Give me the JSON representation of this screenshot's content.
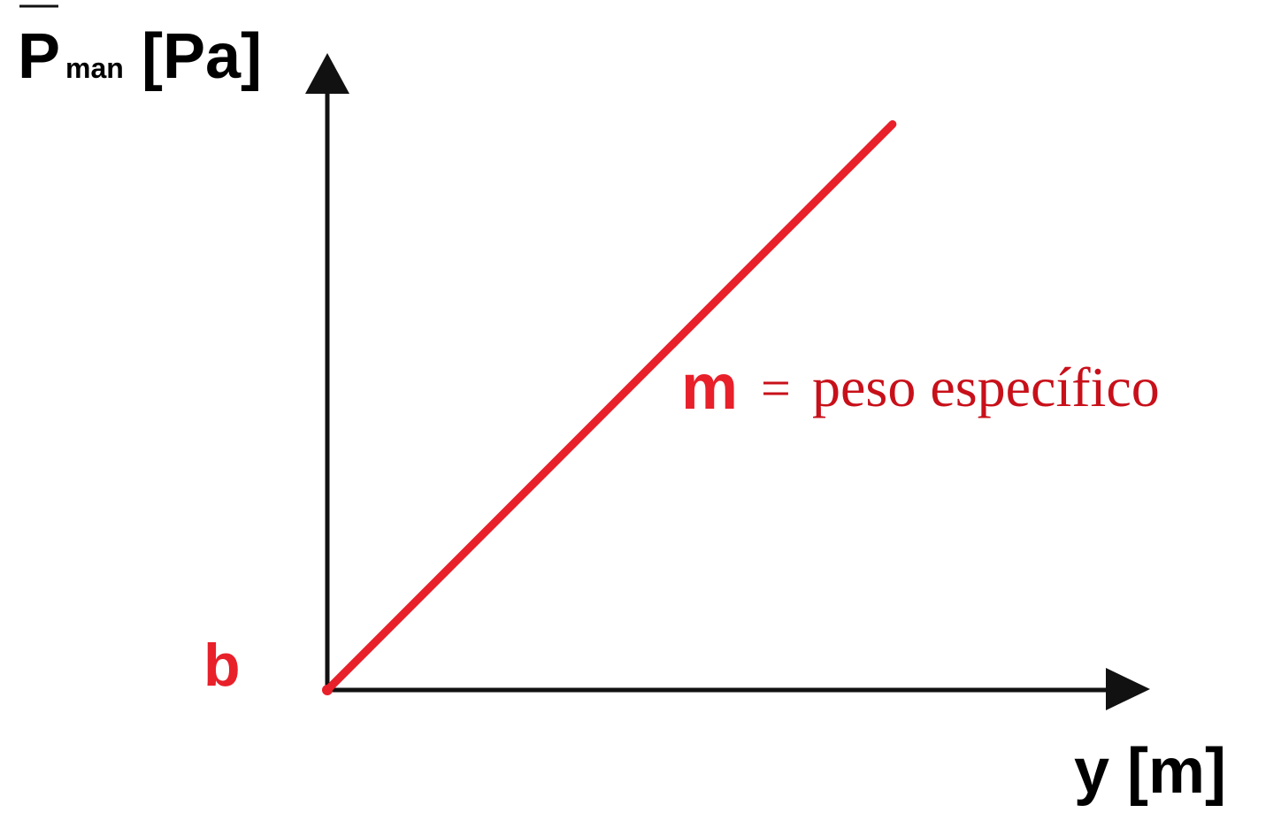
{
  "chart_data": {
    "type": "line",
    "ylabel": {
      "main": "P",
      "subscript": "man",
      "unit": "[Pa]",
      "overline": true
    },
    "xlabel": "y [m]",
    "intercept_label": "b",
    "slope_label": {
      "symbol": "m",
      "equals": "=",
      "text": "peso específico"
    },
    "series": [
      {
        "x": [
          0,
          1
        ],
        "y": [
          0,
          1
        ]
      }
    ],
    "xlim": [
      0,
      1.44
    ],
    "ylim": [
      0,
      1.11
    ],
    "grid": false,
    "legend": "none"
  },
  "colors": {
    "axis": "#111111",
    "line": "#e8202a",
    "annotation_bold": "#e8202a",
    "annotation_serif": "#c8101a",
    "label": "#000000"
  }
}
